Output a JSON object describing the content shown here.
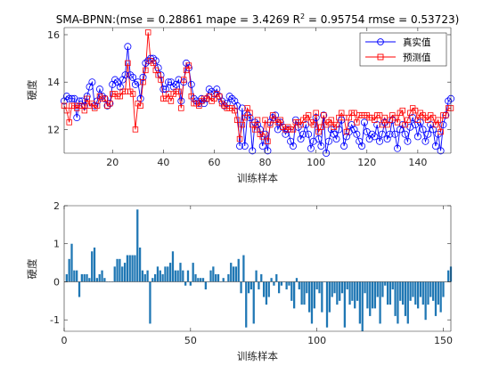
{
  "chart_data": [
    {
      "type": "line",
      "title_prefix": "SMA-BPNN:(mse = 0.28861 mape = 3.4269  R",
      "title_sup": "2",
      "title_suffix": " = 0.95754 rmse = 0.53723)",
      "xlabel": "训练样本",
      "ylabel": "硬度",
      "xlim": [
        1,
        153
      ],
      "ylim": [
        11,
        16.3
      ],
      "xticks": [
        20,
        40,
        60,
        80,
        100,
        120,
        140
      ],
      "yticks": [
        12,
        14,
        16
      ],
      "legend_position": "top-right",
      "series": [
        {
          "name": "真实值",
          "color": "#0000ff",
          "marker": "circle",
          "values": [
            13.2,
            13.4,
            13.3,
            13.3,
            13.3,
            12.5,
            13.2,
            13.2,
            13.0,
            13.4,
            13.8,
            14.0,
            13.0,
            13.2,
            13.7,
            13.4,
            13.3,
            13.0,
            13.1,
            13.9,
            14.1,
            14.0,
            13.8,
            14.1,
            14.3,
            15.5,
            14.3,
            14.2,
            13.9,
            14.0,
            13.3,
            14.2,
            14.8,
            14.9,
            15.0,
            15.0,
            14.9,
            14.6,
            14.3,
            13.7,
            13.7,
            14.0,
            14.0,
            13.8,
            13.9,
            14.1,
            13.2,
            14.0,
            14.8,
            14.6,
            13.9,
            13.3,
            13.2,
            13.1,
            13.3,
            13.1,
            13.3,
            13.7,
            13.6,
            13.5,
            13.7,
            13.4,
            13.2,
            13.0,
            13.1,
            13.4,
            13.3,
            13.2,
            13.0,
            11.3,
            12.9,
            11.3,
            12.6,
            12.5,
            11.1,
            12.3,
            12.2,
            12.0,
            11.3,
            11.8,
            11.1,
            12.3,
            12.5,
            12.6,
            12.0,
            12.3,
            12.1,
            11.8,
            12.0,
            11.5,
            11.3,
            12.4,
            12.1,
            11.6,
            11.8,
            12.2,
            11.8,
            11.2,
            11.5,
            12.5,
            11.6,
            11.3,
            12.6,
            11.0,
            11.5,
            12.0,
            11.8,
            11.6,
            12.0,
            12.4,
            11.3,
            11.7,
            11.9,
            12.2,
            12.0,
            11.8,
            11.5,
            11.3,
            12.3,
            11.9,
            11.6,
            11.8,
            11.7,
            12.2,
            11.5,
            11.8,
            12.3,
            11.6,
            11.8,
            12.4,
            11.8,
            11.2,
            12.0,
            12.2,
            11.8,
            11.5,
            12.1,
            12.5,
            12.2,
            11.7,
            12.3,
            12.0,
            11.5,
            11.8,
            12.2,
            12.0,
            11.3,
            11.8,
            11.1,
            12.2,
            12.6,
            13.2,
            13.3
          ]
        },
        {
          "name": "预测值",
          "color": "#ff0000",
          "marker": "square",
          "values": [
            13.0,
            12.8,
            12.3,
            13.0,
            13.0,
            12.9,
            13.0,
            13.0,
            12.8,
            13.3,
            13.0,
            13.1,
            12.9,
            13.0,
            13.4,
            13.3,
            13.3,
            13.0,
            13.1,
            13.5,
            13.5,
            13.4,
            13.4,
            13.6,
            13.6,
            14.8,
            13.6,
            13.5,
            12.0,
            13.1,
            13.0,
            14.0,
            14.5,
            16.1,
            14.9,
            14.8,
            14.5,
            14.3,
            14.1,
            13.3,
            13.3,
            13.5,
            13.2,
            13.5,
            13.6,
            13.6,
            12.9,
            14.1,
            14.5,
            14.7,
            13.4,
            13.1,
            13.1,
            13.0,
            13.2,
            13.3,
            13.3,
            13.4,
            13.2,
            13.3,
            13.5,
            13.4,
            13.1,
            13.0,
            12.9,
            12.9,
            12.9,
            12.8,
            12.4,
            11.6,
            12.2,
            12.5,
            12.9,
            12.7,
            12.2,
            12.0,
            12.4,
            11.8,
            11.7,
            12.4,
            11.5,
            12.2,
            12.6,
            12.4,
            12.3,
            12.4,
            12.1,
            12.0,
            12.1,
            12.0,
            12.0,
            12.3,
            12.3,
            12.2,
            12.4,
            12.5,
            12.6,
            12.3,
            12.2,
            12.7,
            11.9,
            12.1,
            12.6,
            12.2,
            12.3,
            12.4,
            12.1,
            12.2,
            12.5,
            12.7,
            12.5,
            11.9,
            12.5,
            12.7,
            12.7,
            12.3,
            12.6,
            12.6,
            12.6,
            12.6,
            12.5,
            12.5,
            12.4,
            12.6,
            12.6,
            12.2,
            12.5,
            12.2,
            12.4,
            12.6,
            12.5,
            12.3,
            12.7,
            12.8,
            12.2,
            12.4,
            12.7,
            12.9,
            12.8,
            12.4,
            12.7,
            12.6,
            12.5,
            12.4,
            12.6,
            12.5,
            12.2,
            12.4,
            11.9,
            12.6,
            12.6,
            12.9,
            12.9
          ]
        }
      ]
    },
    {
      "type": "bar",
      "xlabel": "训练样本",
      "ylabel": "硬度",
      "xlim": [
        0,
        153
      ],
      "ylim": [
        -1.3,
        2
      ],
      "xticks": [
        0,
        50,
        100,
        150
      ],
      "yticks": [
        -1,
        0,
        1,
        2
      ],
      "color": "#1f77b4",
      "series": [
        {
          "name": "",
          "values": [
            0.2,
            0.6,
            1.0,
            0.3,
            0.3,
            -0.4,
            0.2,
            0.2,
            0.2,
            0.1,
            0.8,
            0.9,
            0.1,
            0.2,
            0.3,
            0.1,
            0.0,
            0.0,
            0.0,
            0.4,
            0.6,
            0.6,
            0.4,
            0.5,
            0.7,
            0.7,
            0.7,
            0.7,
            1.9,
            0.9,
            0.3,
            0.2,
            0.3,
            -1.1,
            0.1,
            0.2,
            0.4,
            0.3,
            0.2,
            0.4,
            0.4,
            0.5,
            0.8,
            0.3,
            0.3,
            0.5,
            0.3,
            -0.1,
            0.3,
            -0.1,
            0.5,
            0.2,
            0.1,
            0.1,
            0.1,
            -0.2,
            0.0,
            0.3,
            0.4,
            0.2,
            0.2,
            0.0,
            0.1,
            0.0,
            0.2,
            0.5,
            0.4,
            0.4,
            0.6,
            -0.3,
            0.7,
            -1.2,
            -0.3,
            -0.2,
            -1.1,
            0.3,
            -0.2,
            0.2,
            -0.4,
            -0.6,
            -0.4,
            0.1,
            -0.1,
            0.2,
            -0.3,
            -0.1,
            0.0,
            -0.2,
            -0.1,
            -0.5,
            -0.7,
            0.1,
            -0.2,
            -0.6,
            -0.6,
            -0.3,
            -0.8,
            -1.1,
            -0.7,
            -0.2,
            -0.3,
            -0.8,
            0.0,
            -1.2,
            -0.8,
            -0.4,
            -0.3,
            -0.6,
            -0.5,
            -0.3,
            -1.2,
            -0.2,
            -0.6,
            -0.5,
            -0.7,
            -0.5,
            -1.1,
            -1.3,
            -0.3,
            -0.7,
            -0.9,
            -0.7,
            -0.7,
            -0.4,
            -1.1,
            -0.4,
            -0.1,
            -0.6,
            -0.6,
            -0.2,
            -0.9,
            -1.1,
            -0.5,
            -0.6,
            -0.9,
            -1.1,
            -0.5,
            -0.4,
            -0.6,
            -0.7,
            -0.4,
            -0.6,
            -1.0,
            -0.6,
            -0.4,
            -0.5,
            -0.9,
            -0.6,
            -0.8,
            -0.4,
            0.0,
            0.3,
            0.4
          ]
        }
      ]
    }
  ]
}
